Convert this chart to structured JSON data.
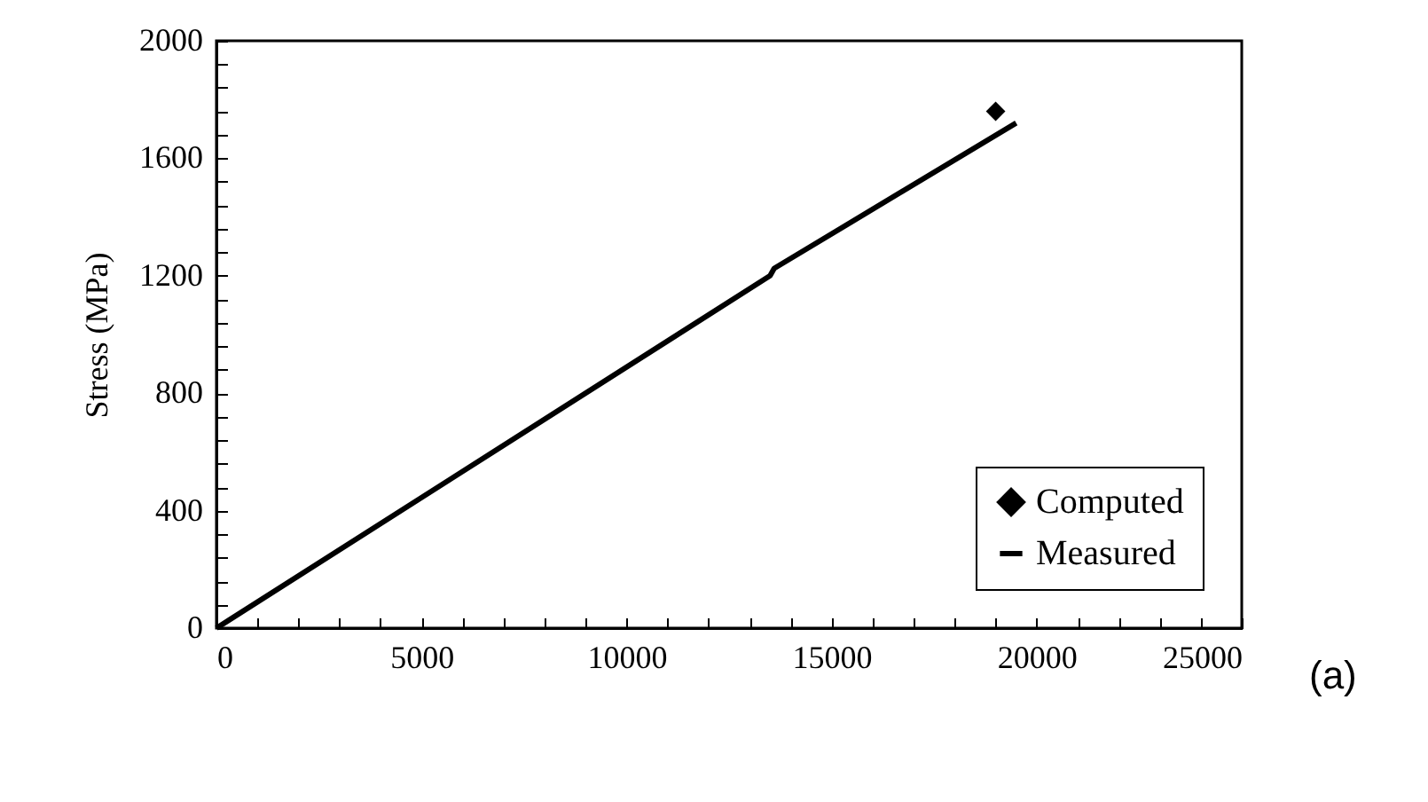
{
  "chart_data": {
    "type": "line",
    "ylabel": "Stress (MPa)",
    "annotations": [
      "(a)"
    ],
    "legend": "bottom right",
    "grid": false,
    "xlim": [
      0,
      25000
    ],
    "ylim": [
      0,
      2000
    ],
    "xticks": [
      0,
      {
        "value": 1000,
        "label": null
      },
      {
        "value": 2000,
        "label": null
      },
      {
        "value": 3000,
        "label": null
      },
      {
        "value": 4000,
        "label": null
      },
      5000,
      {
        "value": 6000,
        "label": null
      },
      {
        "value": 7000,
        "label": null
      },
      {
        "value": 8000,
        "label": null
      },
      {
        "value": 9000,
        "label": null
      },
      10000,
      {
        "value": 11000,
        "label": null
      },
      {
        "value": 12000,
        "label": null
      },
      {
        "value": 13000,
        "label": null
      },
      {
        "value": 14000,
        "label": null
      },
      15000,
      {
        "value": 16000,
        "label": null
      },
      {
        "value": 17000,
        "label": null
      },
      {
        "value": 18000,
        "label": null
      },
      {
        "value": 19000,
        "label": null
      },
      20000,
      {
        "value": 21000,
        "label": null
      },
      {
        "value": 22000,
        "label": null
      },
      {
        "value": 23000,
        "label": null
      },
      {
        "value": 24000,
        "label": null
      },
      25000
    ],
    "yticks": [
      0,
      {
        "value": 80,
        "label": null
      },
      {
        "value": 160,
        "label": null
      },
      {
        "value": 240,
        "label": null
      },
      {
        "value": 320,
        "label": null
      },
      400,
      {
        "value": 480,
        "label": null
      },
      {
        "value": 560,
        "label": null
      },
      {
        "value": 640,
        "label": null
      },
      {
        "value": 720,
        "label": null
      },
      800,
      {
        "value": 880,
        "label": null
      },
      {
        "value": 960,
        "label": null
      },
      {
        "value": 1040,
        "label": null
      },
      {
        "value": 1120,
        "label": null
      },
      1200,
      {
        "value": 1280,
        "label": null
      },
      {
        "value": 1360,
        "label": null
      },
      {
        "value": 1440,
        "label": null
      },
      {
        "value": 1520,
        "label": null
      },
      1600,
      {
        "value": 1680,
        "label": null
      },
      {
        "value": 1760,
        "label": null
      },
      {
        "value": 1840,
        "label": null
      },
      {
        "value": 1920,
        "label": null
      },
      2000
    ],
    "series": [
      {
        "name": "Computed",
        "type": "scatter",
        "marker": "diamond",
        "color": "#000000",
        "x": [
          19000
        ],
        "values": [
          1760
        ]
      },
      {
        "name": "Measured",
        "color": "#000000",
        "x": [
          0,
          13500,
          13600,
          19500
        ],
        "values": [
          0,
          1200,
          1225,
          1720
        ]
      }
    ]
  }
}
